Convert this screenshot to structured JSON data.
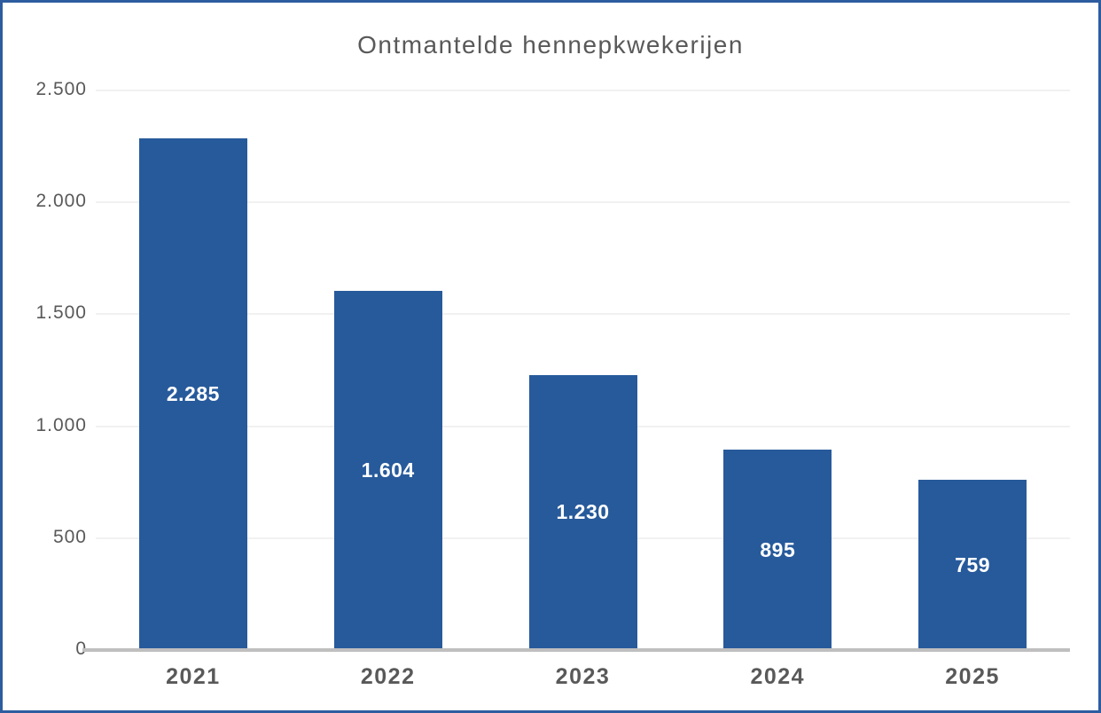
{
  "chart_data": {
    "type": "bar",
    "title": "Ontmantelde hennepkwekerijen",
    "categories": [
      "2021",
      "2022",
      "2023",
      "2024",
      "2025"
    ],
    "values": [
      2285,
      1604,
      1230,
      895,
      759
    ],
    "value_labels": [
      "2.285",
      "1.604",
      "1.230",
      "895",
      "759"
    ],
    "y_ticks": [
      0,
      500,
      1000,
      1500,
      2000,
      2500
    ],
    "y_tick_labels": [
      "0",
      "500",
      "1.000",
      "1.500",
      "2.000",
      "2.500"
    ],
    "ylim": [
      0,
      2500
    ],
    "grid": "horizontal",
    "legend": "none",
    "bar_label_position": "center-inside",
    "colors": {
      "bar_fill": "#275A9B",
      "bar_value_text": "#FFFFFF",
      "axis_text": "#595959",
      "title_text": "#595959",
      "gridline": "#F1F1F1",
      "axis_line": "#BFBFBF",
      "frame_border": "#2E5D9F",
      "background": "#FFFFFF"
    }
  }
}
